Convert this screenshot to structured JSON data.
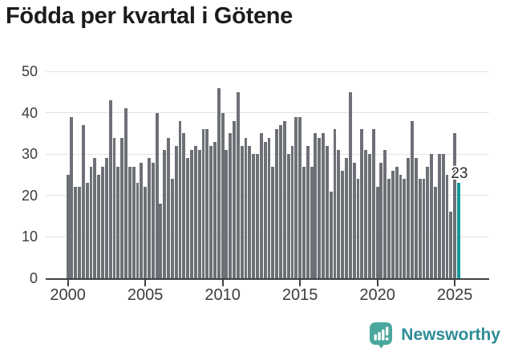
{
  "page": {
    "background": "#ffffff"
  },
  "header": {
    "title": "Födda per kvartal i Götene"
  },
  "chart_data": {
    "type": "bar",
    "title": "Födda per kvartal i Götene",
    "frequency": "quarterly",
    "x_start": "2000-Q1",
    "x_end": "2025-Q2",
    "values": [
      25,
      39,
      22,
      22,
      37,
      23,
      27,
      29,
      25,
      27,
      29,
      43,
      34,
      27,
      34,
      41,
      27,
      27,
      23,
      28,
      22,
      29,
      28,
      40,
      18,
      31,
      34,
      24,
      32,
      38,
      35,
      29,
      31,
      32,
      31,
      36,
      36,
      32,
      33,
      46,
      40,
      31,
      35,
      38,
      45,
      32,
      34,
      32,
      30,
      30,
      35,
      33,
      34,
      27,
      36,
      37,
      38,
      30,
      32,
      39,
      39,
      27,
      32,
      27,
      35,
      34,
      35,
      32,
      21,
      36,
      31,
      26,
      29,
      45,
      28,
      24,
      36,
      31,
      30,
      36,
      22,
      28,
      31,
      24,
      26,
      27,
      25,
      24,
      29,
      38,
      29,
      24,
      24,
      27,
      30,
      22,
      30,
      30,
      25,
      16,
      35,
      23
    ],
    "ylim": [
      0,
      50
    ],
    "yticks": [
      0,
      10,
      20,
      30,
      40,
      50
    ],
    "xticks": [
      "2000",
      "2005",
      "2010",
      "2015",
      "2020",
      "2025"
    ],
    "grid": "horizontal",
    "legend": "none",
    "bar_color": "#6d7076",
    "highlight_color": "#17999b",
    "highlight_index": 101,
    "highlight_label": "23"
  },
  "footer": {
    "brand": "Newsworthy",
    "brand_color": "#2d8c96",
    "icon": "bar-chart-speech-bubble-icon",
    "icon_color": "#4aa79e"
  }
}
